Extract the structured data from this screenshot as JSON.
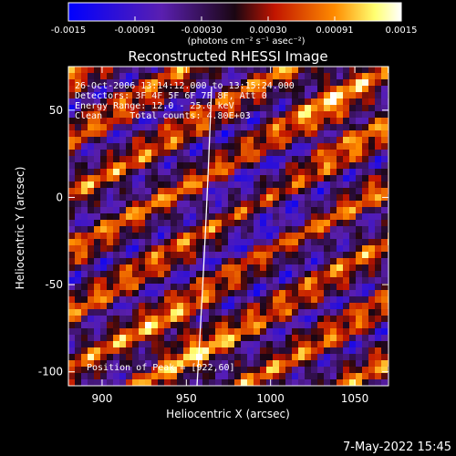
{
  "chart_data": {
    "type": "heatmap",
    "title": "Reconstructed RHESSI Image",
    "xlabel": "Heliocentric X (arcsec)",
    "ylabel": "Heliocentric Y (arcsec)",
    "xlim": [
      880,
      1070
    ],
    "ylim": [
      -108,
      75
    ],
    "x_ticks": [
      900,
      950,
      1000,
      1050
    ],
    "y_ticks": [
      -100,
      -50,
      0,
      50
    ],
    "colorbar": {
      "range": [
        -0.0015,
        0.0015
      ],
      "tick_labels": [
        "-0.0015",
        "-0.00091",
        "-0.00030",
        "0.00030",
        "0.00091",
        "0.0015"
      ],
      "units": "(photons cm⁻² s⁻¹ asec⁻²)",
      "colors": [
        "#0000ff",
        "#5a1fb0",
        "#2a0a1a",
        "#c21500",
        "#ff8c00",
        "#ffff80",
        "#ffffff"
      ]
    },
    "annotations": [
      "26-Oct-2006 13:14:12.000 to 13:15:24.000",
      "Detectors: 3F 4F 5F 6F 7F 8F, Att 0",
      "Energy Range: 12.0 - 25.0 keV",
      "Clean     Total counts: 4.80E+03"
    ],
    "peak_label": "Position of Peak = [922,60]",
    "timestamp": "7-May-2022 15:45"
  }
}
